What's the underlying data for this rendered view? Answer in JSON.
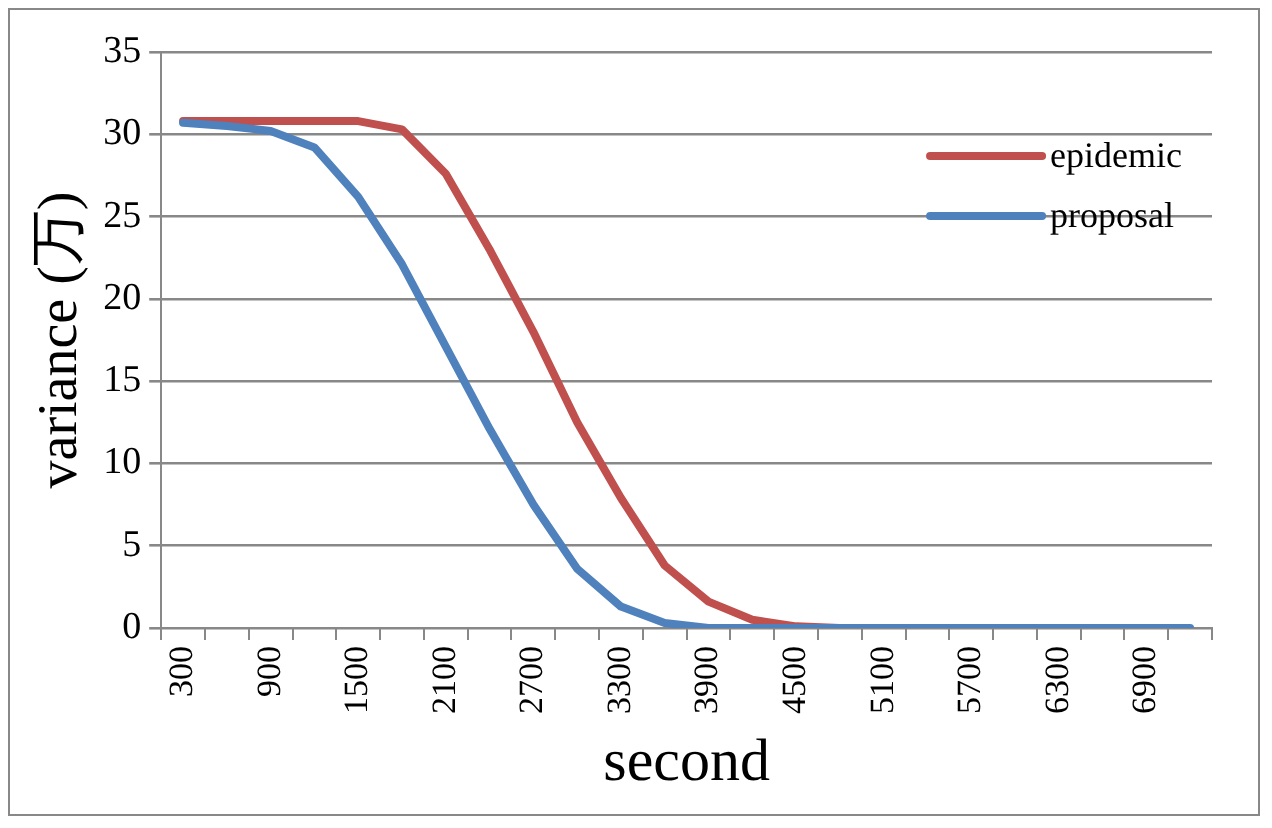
{
  "chart_data": {
    "type": "line",
    "xlabel": "second",
    "ylabel": "variance (万)",
    "categories": [
      "300",
      null,
      "900",
      null,
      "1500",
      null,
      "2100",
      null,
      "2700",
      null,
      "3300",
      null,
      "3900",
      null,
      "4500",
      null,
      "5100",
      null,
      "5700",
      null,
      "6300",
      null,
      "6900",
      null
    ],
    "series": [
      {
        "name": "epidemic",
        "color": "#c0504d",
        "values": [
          30.8,
          30.8,
          30.8,
          30.8,
          30.8,
          30.3,
          27.6,
          23.0,
          18.0,
          12.5,
          7.9,
          3.8,
          1.6,
          0.5,
          0.1,
          0,
          0,
          null,
          null,
          null,
          null,
          null,
          null,
          null
        ]
      },
      {
        "name": "proposal",
        "color": "#4f81bd",
        "values": [
          30.7,
          30.5,
          30.2,
          29.2,
          26.2,
          22.1,
          17.1,
          12.1,
          7.5,
          3.6,
          1.3,
          0.3,
          0,
          0,
          0,
          0,
          0,
          0,
          0,
          0,
          0,
          0,
          0,
          0
        ]
      }
    ],
    "ylim": [
      0,
      35
    ],
    "yticks": [
      0,
      5,
      10,
      15,
      20,
      25,
      30,
      35
    ],
    "grid": "y",
    "legend": "top right",
    "marker": "none",
    "line_style": "solid"
  }
}
